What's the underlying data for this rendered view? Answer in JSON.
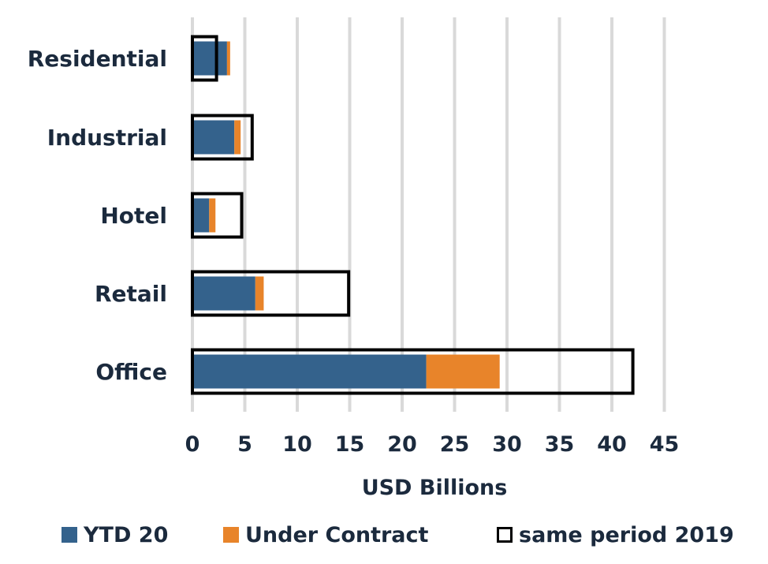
{
  "chart_data": {
    "type": "bar",
    "orientation": "horizontal",
    "stacked": true,
    "categories": [
      "Residential",
      "Industrial",
      "Hotel",
      "Retail",
      "Office"
    ],
    "series": [
      {
        "name": "YTD 20",
        "values": [
          3.3,
          4.0,
          1.6,
          6.0,
          22.3
        ],
        "color": "#34628c"
      },
      {
        "name": "Under Contract",
        "values": [
          0.3,
          0.6,
          0.6,
          0.8,
          7.0
        ],
        "color": "#e8842a"
      }
    ],
    "comparison": {
      "name": "same period 2019",
      "values": [
        2.3,
        5.7,
        4.7,
        14.9,
        42.0
      ],
      "color": "#000000"
    },
    "xlabel": "USD Billions",
    "xlim": [
      0,
      45
    ],
    "xticks": [
      0,
      5,
      10,
      15,
      20,
      25,
      30,
      35,
      40,
      45
    ],
    "grid": "vertical",
    "legend_position": "bottom"
  },
  "legend": {
    "ytd_label": "YTD 20",
    "contract_label": "Under Contract",
    "prior_label": "same period 2019"
  }
}
